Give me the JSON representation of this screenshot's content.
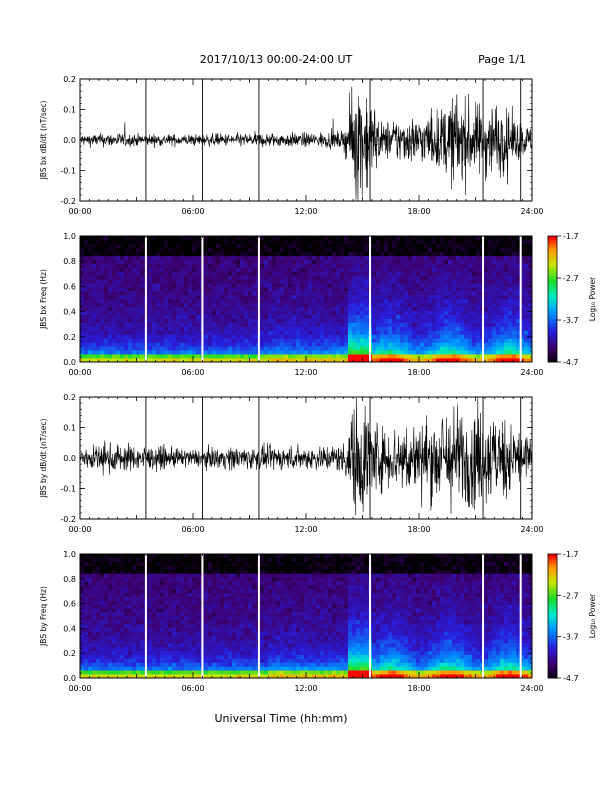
{
  "header": {
    "date_range": "2017/10/13  00:00-24:00 UT",
    "page": "Page 1/1"
  },
  "x_axis": {
    "title": "Universal Time (hh:mm)",
    "ticks": [
      "00:00",
      "06:00",
      "12:00",
      "18:00",
      "24:00"
    ]
  },
  "colorbar": {
    "label": "Log₁₀ Power",
    "ticks": [
      "-1.7",
      "-2.7",
      "-3.7",
      "-4.7"
    ],
    "range": [
      -4.7,
      -1.7
    ]
  },
  "chart_data": [
    {
      "type": "line",
      "ylabel": "JBS bx dB/dt (nT/sec)",
      "ylim": [
        -0.2,
        0.2
      ],
      "xlim_hours": [
        0,
        24
      ],
      "yticks": [
        "0.2",
        "0.1",
        "0.0",
        "-0.1",
        "-0.2"
      ],
      "x_hours": [
        0,
        2,
        3.5,
        6,
        8,
        10,
        12,
        14,
        14.6,
        15.2,
        16,
        17,
        18,
        19,
        20,
        21,
        22,
        23,
        24
      ],
      "amplitude": [
        0.02,
        0.025,
        0.02,
        0.02,
        0.022,
        0.025,
        0.025,
        0.03,
        0.2,
        0.2,
        0.06,
        0.08,
        0.08,
        0.1,
        0.16,
        0.12,
        0.14,
        0.08,
        0.04
      ],
      "gap_spikes_hours": [
        3.5,
        6.5,
        9.5,
        15.4,
        21.4,
        23.4
      ]
    },
    {
      "type": "heatmap",
      "ylabel": "JBS bx Freq (Hz)",
      "ylim": [
        0.0,
        1.0
      ],
      "xlim_hours": [
        0,
        24
      ],
      "yticks": [
        "1.0",
        "0.8",
        "0.6",
        "0.4",
        "0.2",
        "0.0"
      ],
      "colorbar_range": [
        -4.7,
        -1.7
      ],
      "gap_lines_hours": [
        3.5,
        6.5,
        9.5,
        15.4,
        21.4,
        23.4
      ]
    },
    {
      "type": "line",
      "ylabel": "JBS by dB/dt (nT/sec)",
      "ylim": [
        -0.2,
        0.2
      ],
      "xlim_hours": [
        0,
        24
      ],
      "yticks": [
        "0.2",
        "0.1",
        "0.0",
        "-0.1",
        "-0.2"
      ],
      "x_hours": [
        0,
        2,
        3.5,
        6,
        8,
        10,
        12,
        14,
        14.6,
        15.2,
        16,
        17,
        18,
        19,
        20,
        21,
        22,
        23,
        24
      ],
      "amplitude": [
        0.04,
        0.05,
        0.04,
        0.03,
        0.04,
        0.04,
        0.04,
        0.05,
        0.2,
        0.2,
        0.1,
        0.12,
        0.12,
        0.16,
        0.18,
        0.16,
        0.16,
        0.12,
        0.08
      ],
      "gap_spikes_hours": [
        3.5,
        6.5,
        9.5,
        15.4,
        21.4,
        23.4
      ]
    },
    {
      "type": "heatmap",
      "ylabel": "JBS by Freq (Hz)",
      "ylim": [
        0.0,
        1.0
      ],
      "xlim_hours": [
        0,
        24
      ],
      "yticks": [
        "1.0",
        "0.8",
        "0.6",
        "0.4",
        "0.2",
        "0.0"
      ],
      "colorbar_range": [
        -4.7,
        -1.7
      ],
      "gap_lines_hours": [
        3.5,
        6.5,
        9.5,
        15.4,
        21.4,
        23.4
      ]
    }
  ]
}
